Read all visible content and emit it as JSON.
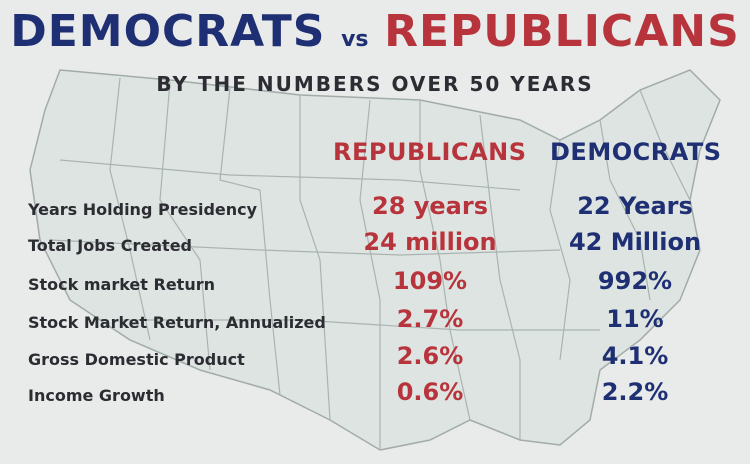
{
  "title": {
    "left": "DEMOCRATS",
    "vs": "vs",
    "right": "REPUBLICANS"
  },
  "subtitle": "BY THE NUMBERS OVER 50 YEARS",
  "columns": {
    "republicans": "REPUBLICANS",
    "democrats": "DEMOCRATS"
  },
  "colors": {
    "republican_red": "#b8343c",
    "democrat_blue": "#1f2f73",
    "map_fill": "#dde4e1",
    "map_border": "#9aa6a2"
  },
  "rows": [
    {
      "label": "Years Holding Presidency",
      "republicans": "28 years",
      "democrats": "22 Years"
    },
    {
      "label": "Total Jobs Created",
      "republicans": "24 million",
      "democrats": "42 Million"
    },
    {
      "label": "Stock market Return",
      "republicans": "109%",
      "democrats": "992%"
    },
    {
      "label": "Stock Market Return, Annualized",
      "republicans": "2.7%",
      "democrats": "11%"
    },
    {
      "label": "Gross Domestic Product",
      "republicans": "2.6%",
      "democrats": "4.1%"
    },
    {
      "label": "Income Growth",
      "republicans": "0.6%",
      "democrats": "2.2%"
    }
  ]
}
